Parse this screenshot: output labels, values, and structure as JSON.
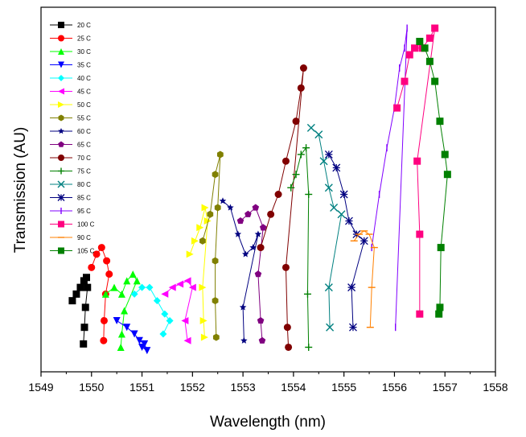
{
  "chart_data": {
    "type": "scatter",
    "title": "",
    "xlabel": "Wavelength (nm)",
    "ylabel": "Transmission (AU)",
    "xlim": [
      1549,
      1558
    ],
    "ylim": [
      0,
      1
    ],
    "x_ticks": [
      1549,
      1550,
      1551,
      1552,
      1553,
      1554,
      1555,
      1556,
      1557,
      1558
    ],
    "y_ticks_shown": false,
    "legend_position": "top-left",
    "series": [
      {
        "name": "20 C",
        "color": "#000000",
        "marker": "square",
        "points": [
          [
            1549.62,
            0.18
          ],
          [
            1549.7,
            0.2
          ],
          [
            1549.78,
            0.22
          ],
          [
            1549.85,
            0.24
          ],
          [
            1549.9,
            0.25
          ],
          [
            1549.92,
            0.22
          ],
          [
            1549.88,
            0.16
          ],
          [
            1549.86,
            0.1
          ],
          [
            1549.84,
            0.05
          ]
        ]
      },
      {
        "name": "25 C",
        "color": "#ff0000",
        "marker": "circle",
        "points": [
          [
            1550.0,
            0.28
          ],
          [
            1550.1,
            0.32
          ],
          [
            1550.2,
            0.34
          ],
          [
            1550.3,
            0.3
          ],
          [
            1550.35,
            0.26
          ],
          [
            1550.28,
            0.2
          ],
          [
            1550.25,
            0.12
          ],
          [
            1550.24,
            0.06
          ]
        ]
      },
      {
        "name": "30 C",
        "color": "#00ff00",
        "marker": "triangle-up",
        "points": [
          [
            1550.28,
            0.2
          ],
          [
            1550.45,
            0.22
          ],
          [
            1550.6,
            0.2
          ],
          [
            1550.7,
            0.24
          ],
          [
            1550.82,
            0.26
          ],
          [
            1550.9,
            0.24
          ],
          [
            1550.65,
            0.15
          ],
          [
            1550.6,
            0.08
          ],
          [
            1550.58,
            0.04
          ]
        ]
      },
      {
        "name": "35 C",
        "color": "#0000ff",
        "marker": "triangle-down",
        "points": [
          [
            1550.5,
            0.12
          ],
          [
            1550.7,
            0.1
          ],
          [
            1550.85,
            0.08
          ],
          [
            1550.95,
            0.06
          ],
          [
            1551.05,
            0.05
          ],
          [
            1551.1,
            0.03
          ],
          [
            1551.0,
            0.04
          ]
        ]
      },
      {
        "name": "40 C",
        "color": "#00ffff",
        "marker": "diamond",
        "points": [
          [
            1550.85,
            0.2
          ],
          [
            1551.0,
            0.22
          ],
          [
            1551.15,
            0.22
          ],
          [
            1551.3,
            0.18
          ],
          [
            1551.45,
            0.14
          ],
          [
            1551.55,
            0.12
          ],
          [
            1551.42,
            0.08
          ]
        ]
      },
      {
        "name": "45 C",
        "color": "#ff00ff",
        "marker": "triangle-left",
        "points": [
          [
            1551.45,
            0.2
          ],
          [
            1551.6,
            0.22
          ],
          [
            1551.75,
            0.23
          ],
          [
            1551.9,
            0.24
          ],
          [
            1552.0,
            0.22
          ],
          [
            1551.85,
            0.12
          ],
          [
            1551.9,
            0.06
          ]
        ]
      },
      {
        "name": "50 C",
        "color": "#ffff00",
        "marker": "triangle-right",
        "points": [
          [
            1551.95,
            0.32
          ],
          [
            1552.05,
            0.36
          ],
          [
            1552.15,
            0.4
          ],
          [
            1552.25,
            0.46
          ],
          [
            1552.3,
            0.42
          ],
          [
            1552.2,
            0.22
          ],
          [
            1552.22,
            0.12
          ],
          [
            1552.24,
            0.07
          ]
        ]
      },
      {
        "name": "55 C",
        "color": "#808000",
        "marker": "hexagon",
        "points": [
          [
            1552.2,
            0.36
          ],
          [
            1552.35,
            0.44
          ],
          [
            1552.45,
            0.56
          ],
          [
            1552.55,
            0.62
          ],
          [
            1552.5,
            0.46
          ],
          [
            1552.45,
            0.3
          ],
          [
            1552.45,
            0.18
          ],
          [
            1552.47,
            0.07
          ]
        ]
      },
      {
        "name": "60 C",
        "color": "#000080",
        "marker": "star",
        "points": [
          [
            1552.6,
            0.48
          ],
          [
            1552.75,
            0.46
          ],
          [
            1552.9,
            0.38
          ],
          [
            1553.05,
            0.32
          ],
          [
            1553.2,
            0.34
          ],
          [
            1553.3,
            0.38
          ],
          [
            1553.0,
            0.16
          ],
          [
            1553.02,
            0.06
          ]
        ]
      },
      {
        "name": "65 C",
        "color": "#800080",
        "marker": "pentagon",
        "points": [
          [
            1552.95,
            0.42
          ],
          [
            1553.1,
            0.44
          ],
          [
            1553.25,
            0.46
          ],
          [
            1553.4,
            0.4
          ],
          [
            1553.3,
            0.26
          ],
          [
            1553.35,
            0.12
          ],
          [
            1553.38,
            0.06
          ]
        ]
      },
      {
        "name": "70 C",
        "color": "#800000",
        "marker": "circle",
        "points": [
          [
            1553.35,
            0.34
          ],
          [
            1553.55,
            0.44
          ],
          [
            1553.7,
            0.5
          ],
          [
            1553.85,
            0.6
          ],
          [
            1554.05,
            0.72
          ],
          [
            1554.15,
            0.82
          ],
          [
            1554.2,
            0.88
          ],
          [
            1553.85,
            0.28
          ],
          [
            1553.88,
            0.1
          ],
          [
            1553.9,
            0.04
          ]
        ]
      },
      {
        "name": "75 C",
        "color": "#008000",
        "marker": "plus",
        "points": [
          [
            1553.95,
            0.52
          ],
          [
            1554.05,
            0.56
          ],
          [
            1554.15,
            0.62
          ],
          [
            1554.25,
            0.64
          ],
          [
            1554.3,
            0.5
          ],
          [
            1554.28,
            0.2
          ],
          [
            1554.3,
            0.04
          ]
        ]
      },
      {
        "name": "80 C",
        "color": "#008080",
        "marker": "x",
        "points": [
          [
            1554.35,
            0.7
          ],
          [
            1554.5,
            0.68
          ],
          [
            1554.6,
            0.6
          ],
          [
            1554.7,
            0.52
          ],
          [
            1554.8,
            0.46
          ],
          [
            1554.95,
            0.44
          ],
          [
            1554.7,
            0.22
          ],
          [
            1554.72,
            0.1
          ]
        ]
      },
      {
        "name": "85 C",
        "color": "#000080",
        "marker": "asterisk",
        "points": [
          [
            1554.7,
            0.62
          ],
          [
            1554.85,
            0.58
          ],
          [
            1555.0,
            0.5
          ],
          [
            1555.1,
            0.42
          ],
          [
            1555.25,
            0.38
          ],
          [
            1555.4,
            0.36
          ],
          [
            1555.15,
            0.22
          ],
          [
            1555.18,
            0.1
          ]
        ]
      },
      {
        "name": "95 C",
        "color": "#8000ff",
        "marker": "vbar",
        "points": [
          [
            1555.55,
            0.34
          ],
          [
            1555.7,
            0.5
          ],
          [
            1555.85,
            0.64
          ],
          [
            1556.0,
            0.76
          ],
          [
            1556.1,
            0.88
          ],
          [
            1556.2,
            0.94
          ],
          [
            1556.25,
            1.0
          ],
          [
            1556.02,
            0.1
          ]
        ]
      },
      {
        "name": "100 C",
        "color": "#ff0080",
        "marker": "square",
        "points": [
          [
            1556.05,
            0.76
          ],
          [
            1556.2,
            0.84
          ],
          [
            1556.3,
            0.92
          ],
          [
            1556.4,
            0.94
          ],
          [
            1556.55,
            0.94
          ],
          [
            1556.7,
            0.97
          ],
          [
            1556.8,
            1.0
          ],
          [
            1556.45,
            0.6
          ],
          [
            1556.5,
            0.38
          ],
          [
            1556.5,
            0.14
          ]
        ]
      },
      {
        "name": "90 C",
        "color": "#ff8000",
        "marker": "hbar",
        "points": [
          [
            1555.2,
            0.36
          ],
          [
            1555.3,
            0.38
          ],
          [
            1555.4,
            0.39
          ],
          [
            1555.5,
            0.38
          ],
          [
            1555.6,
            0.34
          ],
          [
            1555.55,
            0.22
          ],
          [
            1555.52,
            0.1
          ]
        ]
      },
      {
        "name": "105 C",
        "color": "#008000",
        "marker": "square",
        "points": [
          [
            1556.5,
            0.96
          ],
          [
            1556.6,
            0.94
          ],
          [
            1556.7,
            0.9
          ],
          [
            1556.8,
            0.84
          ],
          [
            1556.9,
            0.72
          ],
          [
            1557.0,
            0.62
          ],
          [
            1557.05,
            0.56
          ],
          [
            1556.92,
            0.34
          ],
          [
            1556.9,
            0.16
          ],
          [
            1556.88,
            0.14
          ]
        ]
      }
    ]
  }
}
